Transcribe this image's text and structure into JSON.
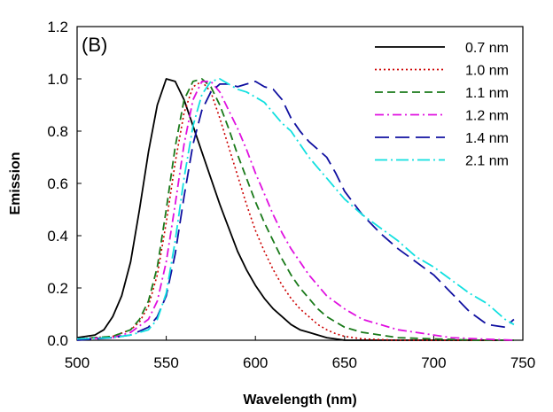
{
  "chart_data": {
    "type": "line",
    "panel_label": "(B)",
    "xlabel": "Wavelength (nm)",
    "ylabel": "Emission",
    "xlim": [
      500,
      750
    ],
    "ylim": [
      0,
      1.2
    ],
    "x_ticks": [
      "500",
      "550",
      "600",
      "650",
      "700",
      "750"
    ],
    "y_ticks": [
      "0.0",
      "0.2",
      "0.4",
      "0.6",
      "0.8",
      "1.0",
      "1.2"
    ],
    "legend_position": "top-right",
    "grid": false,
    "series": [
      {
        "name": "0.7 nm",
        "color": "#000000",
        "dash": "solid",
        "x": [
          500,
          510,
          515,
          520,
          525,
          530,
          535,
          540,
          545,
          550,
          555,
          560,
          565,
          570,
          575,
          580,
          585,
          590,
          595,
          600,
          605,
          610,
          615,
          620,
          625,
          630,
          635,
          640,
          645,
          650,
          660,
          680,
          700,
          725,
          745
        ],
        "y": [
          0.01,
          0.02,
          0.04,
          0.09,
          0.17,
          0.3,
          0.5,
          0.72,
          0.9,
          1.0,
          0.99,
          0.92,
          0.82,
          0.72,
          0.62,
          0.52,
          0.43,
          0.34,
          0.27,
          0.21,
          0.16,
          0.12,
          0.09,
          0.06,
          0.04,
          0.03,
          0.02,
          0.01,
          0.005,
          0.0,
          0.0,
          0.0,
          0.0,
          0.0,
          0.0
        ]
      },
      {
        "name": "1.0 nm",
        "color": "#cc0000",
        "dash": "dotted",
        "x": [
          500,
          520,
          530,
          535,
          540,
          545,
          550,
          555,
          560,
          565,
          570,
          575,
          580,
          585,
          590,
          595,
          600,
          605,
          610,
          615,
          620,
          625,
          630,
          635,
          640,
          645,
          650,
          660,
          680,
          700,
          725,
          745
        ],
        "y": [
          0.005,
          0.015,
          0.04,
          0.07,
          0.13,
          0.25,
          0.45,
          0.68,
          0.87,
          0.97,
          0.99,
          0.95,
          0.85,
          0.74,
          0.63,
          0.52,
          0.42,
          0.34,
          0.27,
          0.21,
          0.16,
          0.12,
          0.09,
          0.06,
          0.04,
          0.025,
          0.015,
          0.005,
          0.0,
          0.0,
          0.0,
          0.0
        ]
      },
      {
        "name": "1.1 nm",
        "color": "#1a7a1a",
        "dash": "dashed",
        "x": [
          500,
          520,
          530,
          535,
          540,
          545,
          550,
          555,
          560,
          565,
          570,
          575,
          580,
          585,
          590,
          595,
          600,
          605,
          610,
          615,
          620,
          625,
          630,
          635,
          640,
          645,
          650,
          660,
          670,
          680,
          700,
          725,
          745
        ],
        "y": [
          0.005,
          0.015,
          0.04,
          0.08,
          0.15,
          0.28,
          0.5,
          0.74,
          0.92,
          0.99,
          1.0,
          0.97,
          0.9,
          0.81,
          0.71,
          0.62,
          0.53,
          0.45,
          0.38,
          0.31,
          0.25,
          0.2,
          0.16,
          0.12,
          0.09,
          0.07,
          0.05,
          0.03,
          0.02,
          0.01,
          0.005,
          0.0,
          0.0
        ]
      },
      {
        "name": "1.2 nm",
        "color": "#e010e0",
        "dash": "dashdot",
        "x": [
          500,
          520,
          530,
          540,
          545,
          550,
          555,
          560,
          565,
          570,
          575,
          580,
          585,
          590,
          595,
          600,
          605,
          610,
          615,
          620,
          625,
          630,
          635,
          640,
          650,
          660,
          670,
          680,
          690,
          700,
          710,
          725,
          745
        ],
        "y": [
          0.005,
          0.01,
          0.03,
          0.08,
          0.15,
          0.3,
          0.52,
          0.75,
          0.92,
          0.99,
          0.99,
          0.95,
          0.88,
          0.81,
          0.73,
          0.64,
          0.56,
          0.48,
          0.41,
          0.35,
          0.3,
          0.25,
          0.21,
          0.17,
          0.12,
          0.08,
          0.06,
          0.04,
          0.03,
          0.02,
          0.01,
          0.005,
          0.0
        ]
      },
      {
        "name": "1.4 nm",
        "color": "#1010a0",
        "dash": "longdash",
        "x": [
          500,
          520,
          530,
          540,
          545,
          550,
          555,
          560,
          565,
          570,
          575,
          580,
          585,
          590,
          595,
          600,
          605,
          610,
          615,
          620,
          625,
          630,
          635,
          640,
          645,
          650,
          660,
          670,
          680,
          690,
          700,
          710,
          720,
          730,
          740,
          745
        ],
        "y": [
          0.0,
          0.01,
          0.02,
          0.05,
          0.09,
          0.17,
          0.33,
          0.55,
          0.75,
          0.88,
          0.95,
          0.98,
          0.98,
          0.97,
          0.98,
          0.99,
          0.97,
          0.96,
          0.92,
          0.85,
          0.8,
          0.76,
          0.73,
          0.7,
          0.64,
          0.57,
          0.48,
          0.41,
          0.35,
          0.3,
          0.25,
          0.18,
          0.11,
          0.06,
          0.05,
          0.08
        ]
      },
      {
        "name": "2.1 nm",
        "color": "#11e0e0",
        "dash": "dashdotlong",
        "x": [
          500,
          520,
          530,
          540,
          545,
          550,
          555,
          560,
          565,
          570,
          575,
          580,
          585,
          590,
          595,
          600,
          605,
          610,
          615,
          620,
          625,
          630,
          635,
          640,
          645,
          650,
          660,
          670,
          680,
          690,
          700,
          710,
          720,
          730,
          740,
          745
        ],
        "y": [
          0.005,
          0.01,
          0.02,
          0.04,
          0.08,
          0.18,
          0.38,
          0.62,
          0.82,
          0.94,
          0.99,
          1.0,
          0.98,
          0.96,
          0.95,
          0.93,
          0.91,
          0.87,
          0.83,
          0.8,
          0.75,
          0.7,
          0.66,
          0.62,
          0.58,
          0.54,
          0.48,
          0.43,
          0.38,
          0.32,
          0.28,
          0.23,
          0.18,
          0.14,
          0.08,
          0.06
        ]
      }
    ]
  }
}
